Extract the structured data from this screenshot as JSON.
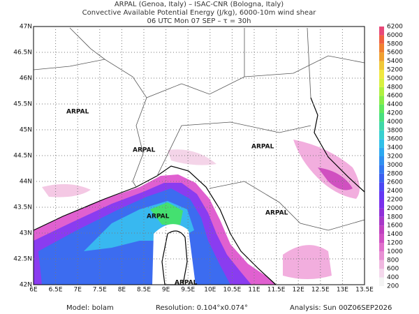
{
  "header": {
    "lines": [
      "ARPAL (Genoa, Italy)  –  ISAC-CNR (Bologna, Italy)",
      "Convective Available Potential Energy (J/kg), 6000-10m wind shear",
      "06 UTC Mon 07 SEP  –  τ = 30h"
    ]
  },
  "axes": {
    "lon": [
      "6E",
      "6.5E",
      "7E",
      "7.5E",
      "8E",
      "8.5E",
      "9E",
      "9.5E",
      "10E",
      "10.5E",
      "11E",
      "11.5E",
      "12E",
      "12.5E",
      "13E",
      "13.5E"
    ],
    "lat": [
      "42N",
      "42.5N",
      "43N",
      "43.5N",
      "44N",
      "44.5N",
      "45N",
      "45.5N",
      "46N",
      "46.5N",
      "47N"
    ]
  },
  "watermark": "ARPAL",
  "colorbar": {
    "labels": [
      200,
      400,
      600,
      800,
      1000,
      1200,
      1400,
      1600,
      1800,
      2000,
      2200,
      2400,
      2600,
      2800,
      3000,
      3200,
      3400,
      3600,
      3800,
      4000,
      4200,
      4400,
      4600,
      4800,
      5000,
      5200,
      5400,
      5600,
      5800,
      6000,
      6200
    ]
  },
  "footer": {
    "model": "Model: bolam",
    "resolution": "Resolution: 0.104°x0.074°",
    "analysis": "Analysis: Sun 00Z06SEP2026"
  }
}
